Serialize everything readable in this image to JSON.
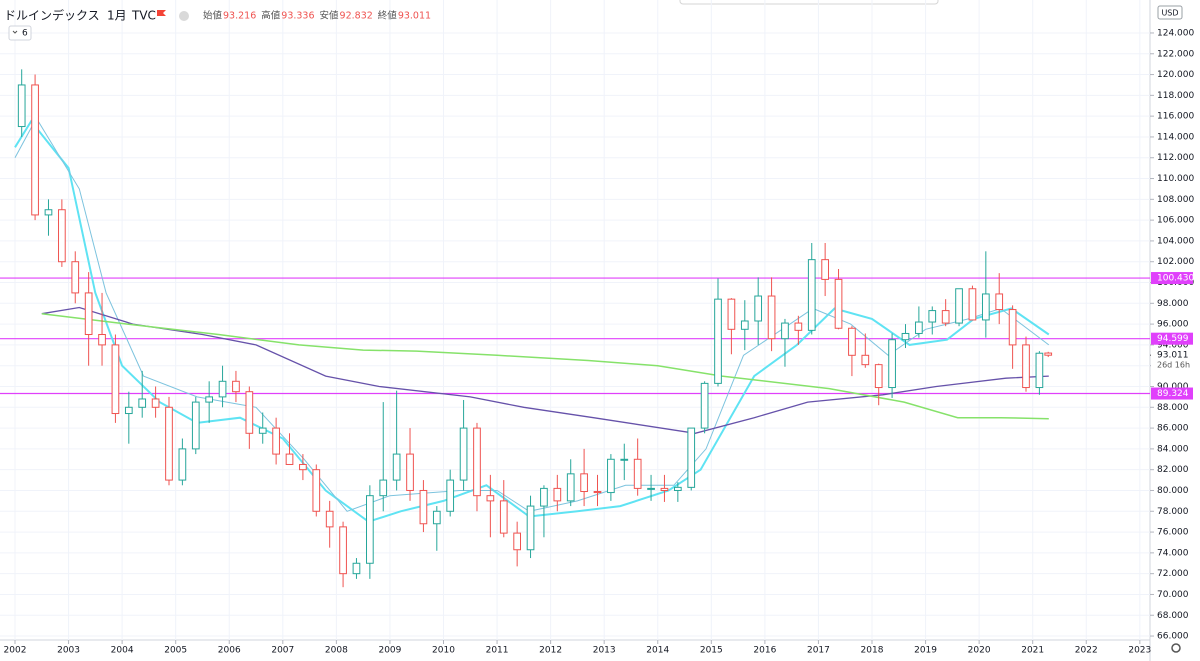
{
  "chart_data": {
    "type": "candlestick",
    "symbol": "ドルインデックス",
    "interval": "1月",
    "source": "TVC",
    "indicator_count": 6,
    "ohlc": [
      {
        "label": "始値",
        "value": "93.216"
      },
      {
        "label": "高値",
        "value": "93.336"
      },
      {
        "label": "安値",
        "value": "92.832"
      },
      {
        "label": "終値",
        "value": "93.011"
      }
    ],
    "currency": "USD",
    "x": [
      2002.125,
      2002.375,
      2002.625,
      2002.875,
      2003.125,
      2003.375,
      2003.625,
      2003.875,
      2004.125,
      2004.375,
      2004.625,
      2004.875,
      2005.125,
      2005.375,
      2005.625,
      2005.875,
      2006.125,
      2006.375,
      2006.625,
      2006.875,
      2007.125,
      2007.375,
      2007.625,
      2007.875,
      2008.125,
      2008.375,
      2008.625,
      2008.875,
      2009.125,
      2009.375,
      2009.625,
      2009.875,
      2010.125,
      2010.375,
      2010.625,
      2010.875,
      2011.125,
      2011.375,
      2011.625,
      2011.875,
      2012.125,
      2012.375,
      2012.625,
      2012.875,
      2013.125,
      2013.375,
      2013.625,
      2013.875,
      2014.125,
      2014.375,
      2014.625,
      2014.875,
      2015.125,
      2015.375,
      2015.625,
      2015.875,
      2016.125,
      2016.375,
      2016.625,
      2016.875,
      2017.125,
      2017.375,
      2017.625,
      2017.875,
      2018.125,
      2018.375,
      2018.625,
      2018.875,
      2019.125,
      2019.375,
      2019.625,
      2019.875,
      2020.125,
      2020.375,
      2020.625,
      2020.875,
      2021.125,
      2021.29
    ],
    "open": [
      115,
      119,
      106.5,
      107,
      102,
      99,
      95,
      94,
      87.4,
      88,
      88.8,
      88,
      81,
      84,
      88.5,
      89,
      90.5,
      89.5,
      85.5,
      86,
      83.5,
      82.5,
      82,
      78,
      76.5,
      72,
      73,
      79.5,
      81,
      83.5,
      80,
      76.8,
      78,
      81,
      86,
      79.5,
      79,
      75.9,
      74.3,
      78.5,
      80.2,
      79,
      81.6,
      79.9,
      79.8,
      83,
      83,
      80.2,
      80.2,
      80,
      80.3,
      86,
      90.3,
      98.4,
      95.5,
      96.3,
      98.7,
      94.6,
      96.1,
      95.4,
      102.2,
      100.3,
      95.6,
      93,
      92.1,
      89.9,
      94.5,
      95.1,
      96.2,
      97.3,
      96.1,
      99.4,
      96.4,
      98.9,
      97.4,
      94,
      89.9,
      93.216
    ],
    "high": [
      120.5,
      120,
      108,
      108,
      103,
      101,
      99,
      95,
      89.5,
      91.5,
      90,
      89,
      85,
      89,
      90.5,
      92,
      91.5,
      90,
      87.5,
      87,
      85.5,
      83.5,
      82.5,
      79,
      77,
      73.5,
      80.5,
      88.5,
      89.6,
      86,
      81,
      78.5,
      82,
      88.7,
      86.5,
      81.5,
      81,
      77,
      79.5,
      80.5,
      81.5,
      83,
      84,
      81.5,
      83.5,
      84.5,
      85,
      81.5,
      81.5,
      80.8,
      86,
      90.5,
      100.4,
      98.5,
      98.3,
      100.5,
      100.5,
      96.5,
      96.8,
      103.8,
      103.8,
      101.3,
      95.8,
      95.1,
      92.2,
      95.1,
      96,
      97.7,
      97.7,
      98.4,
      99.4,
      99.7,
      103,
      100.9,
      97.8,
      94.8,
      93.4,
      93.336
    ],
    "low": [
      114,
      106,
      104.5,
      101.5,
      98,
      92,
      92,
      86.5,
      84.5,
      87,
      87,
      80.5,
      80.5,
      83.5,
      86.5,
      88,
      88.5,
      84,
      84.5,
      82.5,
      82.5,
      81,
      77.5,
      74.5,
      70.7,
      71.5,
      71.5,
      78,
      80,
      79,
      76,
      74.2,
      77.5,
      80,
      78,
      75.5,
      75.5,
      72.7,
      73.5,
      75.5,
      78,
      78.5,
      78.5,
      78.5,
      79,
      81,
      79.5,
      79,
      78.9,
      78.9,
      80,
      85.5,
      90,
      93.1,
      93.5,
      94,
      93.4,
      91.9,
      94,
      95,
      98.7,
      95.5,
      91,
      91.8,
      88.2,
      88.9,
      93.7,
      94.7,
      95,
      95.8,
      95.8,
      96.4,
      94.7,
      96,
      91.7,
      89.5,
      89.2,
      92.832
    ],
    "close": [
      119,
      106.5,
      107,
      102,
      99,
      95,
      94,
      87.4,
      88,
      88.8,
      88,
      81,
      84,
      88.5,
      89,
      90.5,
      89.5,
      85.5,
      86,
      83.5,
      82.5,
      82,
      78,
      76.5,
      72,
      73,
      79.5,
      81,
      83.5,
      80,
      76.8,
      78,
      81,
      86,
      79.5,
      79,
      75.9,
      74.3,
      78.5,
      80.2,
      79,
      81.6,
      79.9,
      79.8,
      83,
      83,
      80.2,
      80.2,
      80,
      80.3,
      86,
      90.3,
      98.4,
      95.5,
      96.3,
      98.7,
      94.6,
      96.1,
      95.4,
      102.2,
      100.3,
      95.6,
      93,
      92.1,
      89.9,
      94.5,
      95.1,
      96.2,
      97.3,
      96.1,
      99.4,
      96.4,
      98.9,
      97.4,
      94,
      89.9,
      93.2,
      93.011
    ],
    "up_color": "#26a69a",
    "down_color": "#ef5350",
    "series": [
      {
        "color": "#5fe3f3",
        "width": 2,
        "x": [
          2002.0,
          2002.3,
          2003.0,
          2003.5,
          2004.0,
          2004.7,
          2005.4,
          2006.2,
          2007.0,
          2007.8,
          2008.6,
          2009.2,
          2010.0,
          2010.8,
          2011.6,
          2012.5,
          2013.3,
          2014.2,
          2014.8,
          2015.8,
          2016.6,
          2017.3,
          2018.0,
          2018.7,
          2019.4,
          2019.9,
          2020.6,
          2021.3
        ],
        "values": [
          113,
          115.5,
          111,
          99,
          92,
          88.5,
          86.5,
          87,
          85,
          80,
          77,
          78,
          79,
          80.5,
          77.5,
          78,
          78.5,
          80,
          82,
          91,
          94,
          97.5,
          96.5,
          94,
          94.5,
          96.5,
          97.5,
          95
        ]
      },
      {
        "color": "#7cc3de",
        "width": 1,
        "x": [
          2002.0,
          2002.4,
          2003.2,
          2003.7,
          2004.4,
          2005.4,
          2006.5,
          2007.4,
          2008.2,
          2009.0,
          2010.3,
          2011.0,
          2011.6,
          2012.5,
          2013.4,
          2014.3,
          2014.9,
          2015.6,
          2016.9,
          2017.6,
          2018.3,
          2019.0,
          2019.8,
          2020.4,
          2021.3
        ],
        "values": [
          112,
          115.8,
          109,
          99,
          91,
          89,
          88,
          83,
          78,
          79.5,
          80,
          80,
          78,
          79,
          80.5,
          80.5,
          84,
          93,
          97.5,
          96,
          93,
          95.5,
          96.5,
          97.5,
          94
        ]
      },
      {
        "color": "#6652aa",
        "width": 1.3,
        "x": [
          2002.5,
          2003.2,
          2004.2,
          2005.5,
          2006.5,
          2007.8,
          2008.8,
          2010.5,
          2011.5,
          2012.8,
          2014.7,
          2015.8,
          2016.8,
          2018.2,
          2019.2,
          2020.5,
          2021.3
        ],
        "values": [
          97,
          97.6,
          96,
          95,
          94,
          91,
          90,
          89,
          88,
          87,
          85.5,
          87,
          88.5,
          89.2,
          90,
          90.8,
          91
        ]
      },
      {
        "color": "#86e26a",
        "width": 1.5,
        "x": [
          2002.5,
          2004.1,
          2005.8,
          2007.3,
          2008.5,
          2009.5,
          2011.0,
          2012.7,
          2014.0,
          2015.2,
          2017.2,
          2018.6,
          2019.6,
          2020.4,
          2021.3
        ],
        "values": [
          97,
          96,
          95,
          94,
          93.5,
          93.4,
          93,
          92.5,
          92,
          91,
          89.8,
          88.5,
          87,
          87,
          86.9
        ]
      }
    ],
    "hlines": [
      {
        "value": 100.43,
        "label": "100.430"
      },
      {
        "value": 94.599,
        "label": "94.599"
      },
      {
        "value": 89.324,
        "label": "89.324"
      }
    ],
    "hline_color": "#e040fb",
    "last_price": {
      "value": 93.011,
      "label": "93.011",
      "countdown": "26d 16h"
    },
    "xlim": [
      2001.72,
      2023.19
    ],
    "ylim": [
      65.62,
      127.17
    ],
    "xticks": [
      2002,
      2003,
      2004,
      2005,
      2006,
      2007,
      2008,
      2009,
      2010,
      2011,
      2012,
      2013,
      2014,
      2015,
      2016,
      2017,
      2018,
      2019,
      2020,
      2021,
      2022,
      2023
    ],
    "yticks": [
      {
        "value": 66,
        "label": "66.000"
      },
      {
        "value": 68,
        "label": "68.000"
      },
      {
        "value": 70,
        "label": "70.000"
      },
      {
        "value": 72,
        "label": "72.000"
      },
      {
        "value": 74,
        "label": "74.000"
      },
      {
        "value": 76,
        "label": "76.000"
      },
      {
        "value": 78,
        "label": "78.000"
      },
      {
        "value": 80,
        "label": "80.000"
      },
      {
        "value": 82,
        "label": "82.000"
      },
      {
        "value": 84,
        "label": "84.000"
      },
      {
        "value": 86,
        "label": "86.000"
      },
      {
        "value": 88,
        "label": "88.000"
      },
      {
        "value": 90,
        "label": "90.000"
      },
      {
        "value": 92,
        "label": "92.000"
      },
      {
        "value": 94,
        "label": "94.000"
      },
      {
        "value": 96,
        "label": "96.000"
      },
      {
        "value": 98,
        "label": "98.000"
      },
      {
        "value": 100,
        "label": "100.000"
      },
      {
        "value": 102,
        "label": "102.000"
      },
      {
        "value": 104,
        "label": "104.000"
      },
      {
        "value": 106,
        "label": "106.000"
      },
      {
        "value": 108,
        "label": "108.000"
      },
      {
        "value": 110,
        "label": "110.000"
      },
      {
        "value": 112,
        "label": "112.000"
      },
      {
        "value": 114,
        "label": "114.000"
      },
      {
        "value": 116,
        "label": "116.000"
      },
      {
        "value": 118,
        "label": "118.000"
      },
      {
        "value": 120,
        "label": "120.000"
      },
      {
        "value": 122,
        "label": "122.000"
      },
      {
        "value": 124,
        "label": "124.000"
      }
    ],
    "grid": true
  }
}
